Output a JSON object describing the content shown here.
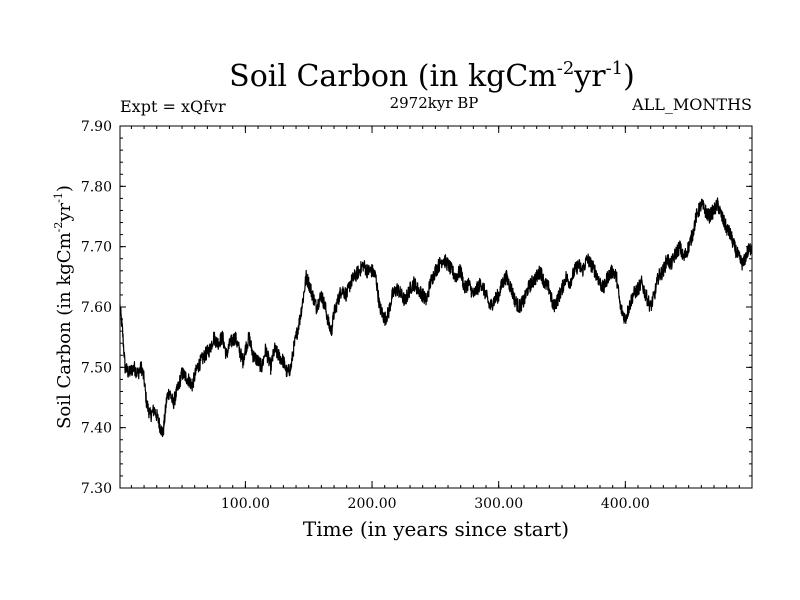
{
  "chart_data": {
    "type": "line",
    "title_main": "Soil Carbon (in kgCm",
    "title_sup1": "-2",
    "title_mid": "yr",
    "title_sup2": "-1",
    "title_end": ")",
    "expt_label": "Expt = xQfvr",
    "subtitle": "2972kyr BP",
    "months_label": "ALL_MONTHS",
    "xlabel": "Time (in years since start)",
    "ylabel_main": "Soil Carbon (in kgCm",
    "ylabel_sup1": "-2",
    "ylabel_mid": "yr",
    "ylabel_sup2": "-1",
    "ylabel_end": ")",
    "xlim": [
      1,
      500
    ],
    "ylim": [
      7.3,
      7.9
    ],
    "x_ticks": [
      100,
      200,
      300,
      400
    ],
    "x_tick_labels": [
      "100.00",
      "200.00",
      "300.00",
      "400.00"
    ],
    "y_ticks": [
      7.3,
      7.4,
      7.5,
      7.6,
      7.7,
      7.8,
      7.9
    ],
    "y_tick_labels": [
      "7.30",
      "7.40",
      "7.50",
      "7.60",
      "7.70",
      "7.80",
      "7.90"
    ],
    "series": [
      {
        "name": "Soil Carbon",
        "color": "#000000",
        "noise": 0.012,
        "x": [
          1,
          3,
          5,
          8,
          12,
          15,
          18,
          20,
          22,
          25,
          28,
          30,
          33,
          35,
          38,
          40,
          43,
          46,
          50,
          55,
          58,
          62,
          65,
          68,
          72,
          75,
          78,
          82,
          85,
          88,
          92,
          95,
          98,
          100,
          103,
          106,
          110,
          113,
          116,
          120,
          123,
          126,
          130,
          133,
          136,
          138,
          140,
          143,
          146,
          148,
          150,
          153,
          156,
          160,
          163,
          166,
          168,
          170,
          173,
          176,
          180,
          183,
          186,
          190,
          193,
          196,
          200,
          203,
          206,
          210,
          213,
          216,
          220,
          223,
          226,
          230,
          233,
          236,
          240,
          243,
          246,
          250,
          253,
          256,
          260,
          263,
          266,
          270,
          273,
          276,
          280,
          283,
          286,
          290,
          293,
          296,
          300,
          303,
          306,
          310,
          313,
          316,
          320,
          323,
          326,
          330,
          333,
          336,
          340,
          343,
          346,
          350,
          353,
          356,
          360,
          363,
          366,
          370,
          373,
          376,
          380,
          383,
          386,
          390,
          393,
          396,
          400,
          403,
          406,
          410,
          413,
          416,
          420,
          423,
          426,
          430,
          433,
          436,
          440,
          443,
          446,
          450,
          453,
          456,
          460,
          463,
          466,
          470,
          473,
          476,
          480,
          483,
          486,
          490,
          493,
          496,
          500
        ],
        "y": [
          7.6,
          7.56,
          7.5,
          7.49,
          7.5,
          7.49,
          7.5,
          7.48,
          7.44,
          7.42,
          7.43,
          7.42,
          7.4,
          7.39,
          7.45,
          7.46,
          7.44,
          7.46,
          7.49,
          7.48,
          7.47,
          7.5,
          7.51,
          7.52,
          7.53,
          7.55,
          7.54,
          7.55,
          7.52,
          7.54,
          7.55,
          7.53,
          7.51,
          7.53,
          7.55,
          7.52,
          7.51,
          7.5,
          7.53,
          7.5,
          7.53,
          7.52,
          7.51,
          7.49,
          7.5,
          7.53,
          7.55,
          7.58,
          7.62,
          7.65,
          7.64,
          7.62,
          7.6,
          7.62,
          7.6,
          7.57,
          7.56,
          7.59,
          7.61,
          7.63,
          7.62,
          7.64,
          7.65,
          7.66,
          7.67,
          7.66,
          7.66,
          7.65,
          7.6,
          7.58,
          7.59,
          7.62,
          7.63,
          7.62,
          7.61,
          7.63,
          7.64,
          7.63,
          7.62,
          7.61,
          7.64,
          7.66,
          7.67,
          7.68,
          7.67,
          7.66,
          7.65,
          7.66,
          7.63,
          7.64,
          7.62,
          7.63,
          7.64,
          7.62,
          7.6,
          7.61,
          7.62,
          7.64,
          7.65,
          7.63,
          7.61,
          7.6,
          7.61,
          7.63,
          7.64,
          7.65,
          7.66,
          7.64,
          7.63,
          7.6,
          7.61,
          7.63,
          7.65,
          7.64,
          7.66,
          7.67,
          7.66,
          7.68,
          7.67,
          7.66,
          7.64,
          7.63,
          7.65,
          7.66,
          7.65,
          7.6,
          7.58,
          7.6,
          7.62,
          7.63,
          7.64,
          7.62,
          7.6,
          7.62,
          7.65,
          7.66,
          7.68,
          7.67,
          7.69,
          7.7,
          7.68,
          7.7,
          7.72,
          7.75,
          7.77,
          7.76,
          7.75,
          7.76,
          7.77,
          7.75,
          7.73,
          7.72,
          7.7,
          7.68,
          7.67,
          7.69,
          7.7
        ]
      }
    ]
  }
}
